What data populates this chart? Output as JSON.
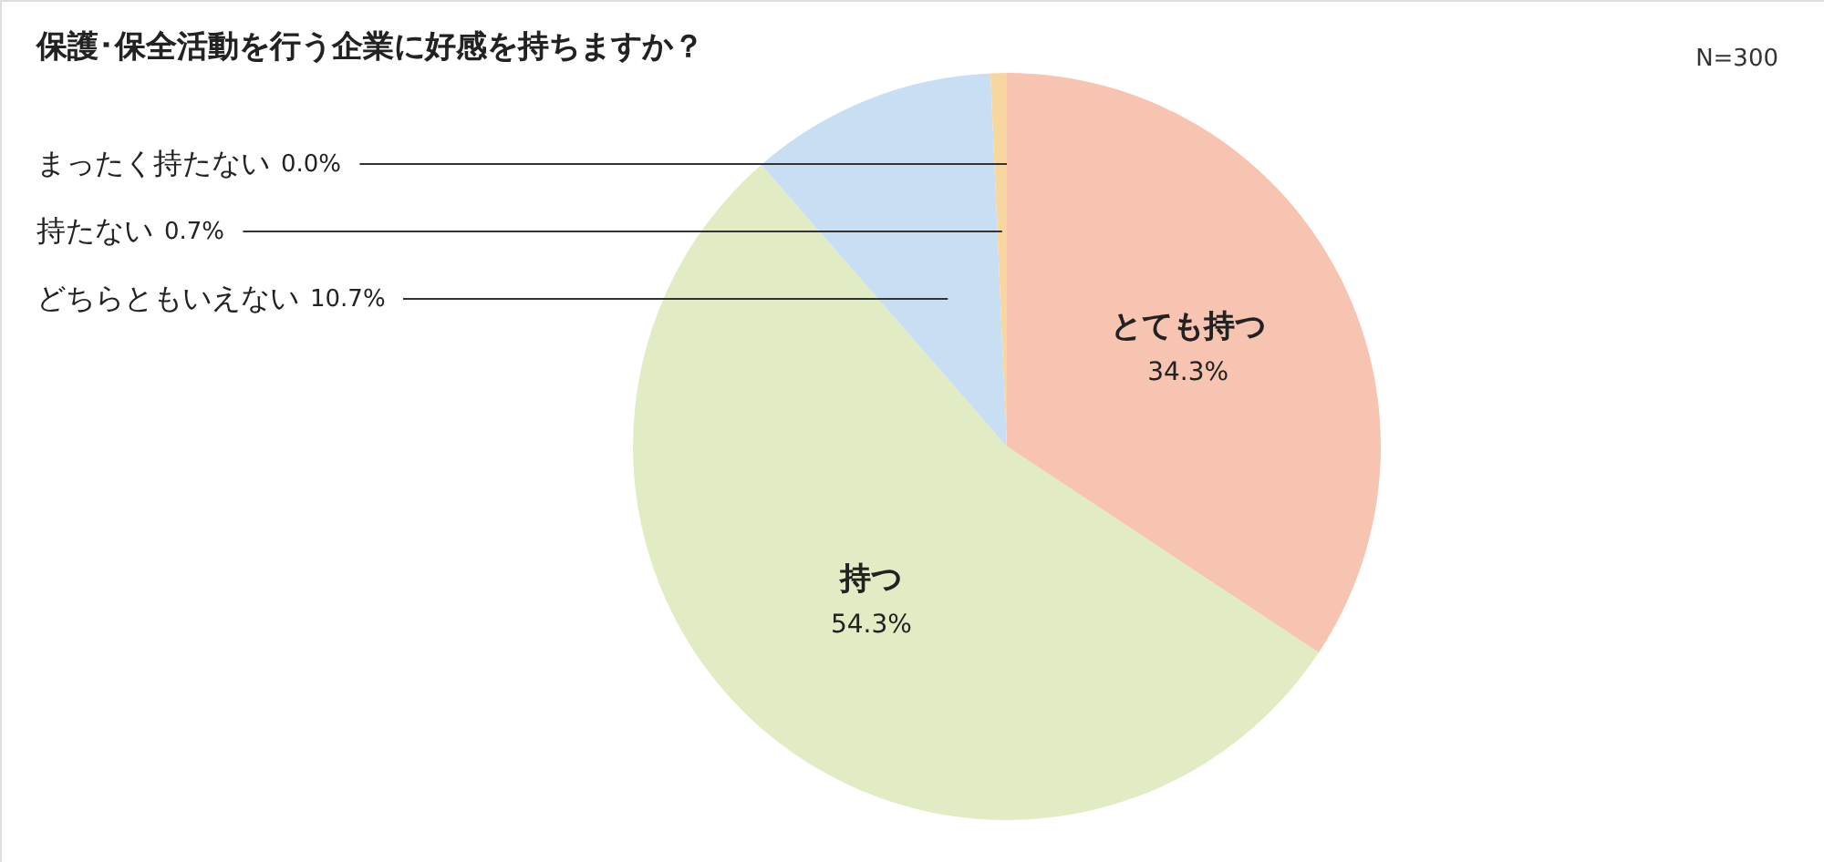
{
  "chart_data": {
    "type": "pie",
    "title": "保護･保全活動を行う企業に好感を持ちますか？",
    "categories": [
      "とても持つ",
      "持つ",
      "どちらともいえない",
      "持たない",
      "まったく持たない"
    ],
    "values": [
      34.3,
      54.3,
      10.7,
      0.7,
      0.0
    ],
    "value_labels": [
      "34.3%",
      "54.3%",
      "10.7%",
      "0.7%",
      "0.0%"
    ],
    "colors": [
      "#f6c4b1",
      "#e1ecc5",
      "#c8def2",
      "#f8d6a0",
      "#e9a0a0"
    ],
    "annotations": [
      "N=300"
    ]
  }
}
